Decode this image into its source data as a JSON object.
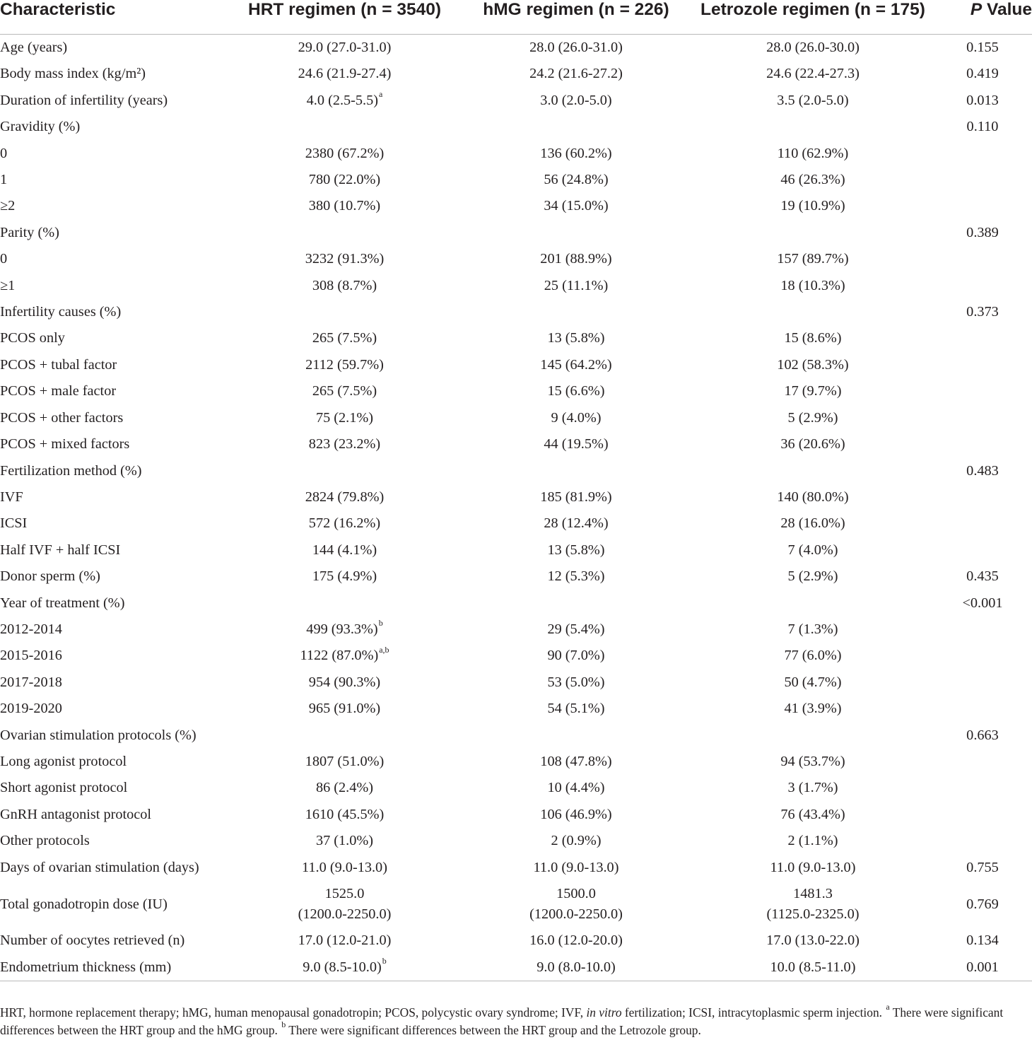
{
  "table": {
    "headers": {
      "characteristic": "Characteristic",
      "hrt": "HRT regimen (n = 3540)",
      "hmg": "hMG regimen (n = 226)",
      "letrozole": "Letrozole regimen (n = 175)",
      "p_italic": "P",
      "p_rest": " Value"
    },
    "rows": [
      {
        "label": "Age (years)",
        "hrt": "29.0 (27.0-31.0)",
        "hmg": "28.0 (26.0-31.0)",
        "letrozole": "28.0 (26.0-30.0)",
        "p": "0.155"
      },
      {
        "label": "Body mass index (kg/m²)",
        "hrt": "24.6 (21.9-27.4)",
        "hmg": "24.2 (21.6-27.2)",
        "letrozole": "24.6 (22.4-27.3)",
        "p": "0.419"
      },
      {
        "label": "Duration of infertility (years)",
        "hrt": "4.0 (2.5-5.5)",
        "hrt_sup": "a",
        "hmg": "3.0 (2.0-5.0)",
        "letrozole": "3.5 (2.0-5.0)",
        "p": "0.013"
      },
      {
        "label": "Gravidity (%)",
        "hrt": "",
        "hmg": "",
        "letrozole": "",
        "p": "0.110"
      },
      {
        "label": "0",
        "hrt": "2380 (67.2%)",
        "hmg": "136 (60.2%)",
        "letrozole": "110 (62.9%)",
        "p": ""
      },
      {
        "label": "1",
        "hrt": "780 (22.0%)",
        "hmg": "56 (24.8%)",
        "letrozole": "46 (26.3%)",
        "p": ""
      },
      {
        "label": "≥2",
        "hrt": "380 (10.7%)",
        "hmg": "34 (15.0%)",
        "letrozole": "19 (10.9%)",
        "p": ""
      },
      {
        "label": "Parity (%)",
        "hrt": "",
        "hmg": "",
        "letrozole": "",
        "p": "0.389"
      },
      {
        "label": "0",
        "hrt": "3232 (91.3%)",
        "hmg": "201 (88.9%)",
        "letrozole": "157 (89.7%)",
        "p": ""
      },
      {
        "label": "≥1",
        "hrt": "308 (8.7%)",
        "hmg": "25 (11.1%)",
        "letrozole": "18 (10.3%)",
        "p": ""
      },
      {
        "label": "Infertility causes (%)",
        "hrt": "",
        "hmg": "",
        "letrozole": "",
        "p": "0.373"
      },
      {
        "label": "PCOS only",
        "hrt": "265 (7.5%)",
        "hmg": "13 (5.8%)",
        "letrozole": "15 (8.6%)",
        "p": ""
      },
      {
        "label": "PCOS + tubal factor",
        "hrt": "2112 (59.7%)",
        "hmg": "145 (64.2%)",
        "letrozole": "102 (58.3%)",
        "p": ""
      },
      {
        "label": "PCOS + male factor",
        "hrt": "265 (7.5%)",
        "hmg": "15 (6.6%)",
        "letrozole": "17 (9.7%)",
        "p": ""
      },
      {
        "label": "PCOS + other factors",
        "hrt": "75 (2.1%)",
        "hmg": "9 (4.0%)",
        "letrozole": "5 (2.9%)",
        "p": ""
      },
      {
        "label": "PCOS + mixed factors",
        "hrt": "823 (23.2%)",
        "hmg": "44 (19.5%)",
        "letrozole": "36 (20.6%)",
        "p": ""
      },
      {
        "label": "Fertilization method (%)",
        "hrt": "",
        "hmg": "",
        "letrozole": "",
        "p": "0.483"
      },
      {
        "label": "IVF",
        "hrt": "2824 (79.8%)",
        "hmg": "185 (81.9%)",
        "letrozole": "140 (80.0%)",
        "p": ""
      },
      {
        "label": "ICSI",
        "hrt": "572 (16.2%)",
        "hmg": "28 (12.4%)",
        "letrozole": "28 (16.0%)",
        "p": ""
      },
      {
        "label": "Half IVF + half ICSI",
        "hrt": "144 (4.1%)",
        "hmg": "13 (5.8%)",
        "letrozole": "7 (4.0%)",
        "p": ""
      },
      {
        "label": "Donor sperm (%)",
        "hrt": "175 (4.9%)",
        "hmg": "12 (5.3%)",
        "letrozole": "5 (2.9%)",
        "p": "0.435"
      },
      {
        "label": "Year of treatment (%)",
        "hrt": "",
        "hmg": "",
        "letrozole": "",
        "p": "<0.001"
      },
      {
        "label": "2012-2014",
        "hrt": "499 (93.3%)",
        "hrt_sup": "b",
        "hmg": "29 (5.4%)",
        "letrozole": "7 (1.3%)",
        "p": ""
      },
      {
        "label": "2015-2016",
        "hrt": "1122 (87.0%)",
        "hrt_sup": "a,b",
        "hmg": "90 (7.0%)",
        "letrozole": "77 (6.0%)",
        "p": ""
      },
      {
        "label": "2017-2018",
        "hrt": "954 (90.3%)",
        "hmg": "53 (5.0%)",
        "letrozole": "50 (4.7%)",
        "p": ""
      },
      {
        "label": "2019-2020",
        "hrt": "965 (91.0%)",
        "hmg": "54 (5.1%)",
        "letrozole": "41 (3.9%)",
        "p": ""
      },
      {
        "label": "Ovarian stimulation protocols (%)",
        "hrt": "",
        "hmg": "",
        "letrozole": "",
        "p": "0.663"
      },
      {
        "label": "Long agonist protocol",
        "hrt": "1807 (51.0%)",
        "hmg": "108 (47.8%)",
        "letrozole": "94 (53.7%)",
        "p": ""
      },
      {
        "label": "Short agonist protocol",
        "hrt": "86 (2.4%)",
        "hmg": "10 (4.4%)",
        "letrozole": "3 (1.7%)",
        "p": ""
      },
      {
        "label": "GnRH antagonist protocol",
        "hrt": "1610 (45.5%)",
        "hmg": "106 (46.9%)",
        "letrozole": "76 (43.4%)",
        "p": ""
      },
      {
        "label": "Other protocols",
        "hrt": "37 (1.0%)",
        "hmg": "2 (0.9%)",
        "letrozole": "2 (1.1%)",
        "p": ""
      },
      {
        "label": "Days of ovarian stimulation (days)",
        "hrt": "11.0 (9.0-13.0)",
        "hmg": "11.0 (9.0-13.0)",
        "letrozole": "11.0 (9.0-13.0)",
        "p": "0.755"
      },
      {
        "label": "Total gonadotropin dose (IU)",
        "hrt": "1525.0",
        "hrt_line2": "(1200.0-2250.0)",
        "hmg": "1500.0",
        "hmg_line2": "(1200.0-2250.0)",
        "letrozole": "1481.3",
        "letrozole_line2": "(1125.0-2325.0)",
        "p": "0.769"
      },
      {
        "label": "Number of oocytes retrieved (n)",
        "hrt": "17.0 (12.0-21.0)",
        "hmg": "16.0 (12.0-20.0)",
        "letrozole": "17.0 (13.0-22.0)",
        "p": "0.134"
      },
      {
        "label": "Endometrium thickness (mm)",
        "hrt": "9.0 (8.5-10.0)",
        "hrt_sup": "b",
        "hmg": "9.0 (8.0-10.0)",
        "letrozole": "10.0 (8.5-11.0)",
        "p": "0.001"
      }
    ]
  },
  "footnote": {
    "part1": "HRT, hormone replacement therapy; hMG, human menopausal gonadotropin; PCOS, polycystic ovary syndrome; IVF, ",
    "italic": "in vitro",
    "part2": " fertilization; ICSI, intracytoplasmic sperm injection. ",
    "sup_a": "a",
    "part3": " There were significant differences between the HRT group and the hMG group. ",
    "sup_b": "b",
    "part4": " There were significant differences between the HRT group and the Letrozole group."
  }
}
